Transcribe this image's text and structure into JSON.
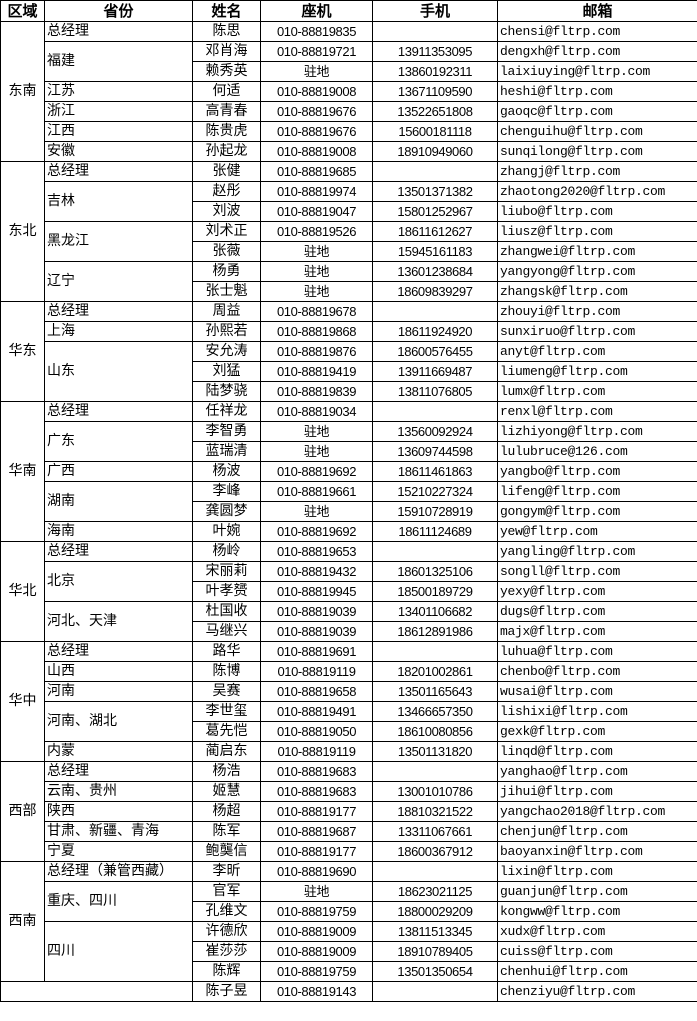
{
  "header": [
    "区域",
    "省份",
    "姓名",
    "座机",
    "手机",
    "邮箱"
  ],
  "regions": [
    {
      "name": "东南",
      "groups": [
        {
          "province": "总经理",
          "people": [
            {
              "name": "陈思",
              "landline": "010-88819835",
              "mobile": "",
              "email": "chensi@fltrp.com"
            }
          ]
        },
        {
          "province": "福建",
          "people": [
            {
              "name": "邓肖海",
              "landline": "010-88819721",
              "mobile": "13911353095",
              "email": "dengxh@fltrp.com"
            },
            {
              "name": "赖秀英",
              "landline": "驻地",
              "mobile": "13860192311",
              "email": "laixiuying@fltrp.com"
            }
          ]
        },
        {
          "province": "江苏",
          "people": [
            {
              "name": "何适",
              "landline": "010-88819008",
              "mobile": "13671109590",
              "email": "heshi@fltrp.com"
            }
          ]
        },
        {
          "province": "浙江",
          "people": [
            {
              "name": "高青春",
              "landline": "010-88819676",
              "mobile": "13522651808",
              "email": "gaoqc@fltrp.com"
            }
          ]
        },
        {
          "province": "江西",
          "people": [
            {
              "name": "陈贵虎",
              "landline": "010-88819676",
              "mobile": "15600181118",
              "email": "chenguihu@fltrp.com"
            }
          ]
        },
        {
          "province": "安徽",
          "people": [
            {
              "name": "孙起龙",
              "landline": "010-88819008",
              "mobile": "18910949060",
              "email": "sunqilong@fltrp.com"
            }
          ]
        }
      ]
    },
    {
      "name": "东北",
      "groups": [
        {
          "province": "总经理",
          "people": [
            {
              "name": "张健",
              "landline": "010-88819685",
              "mobile": "",
              "email": "zhangj@fltrp.com"
            }
          ]
        },
        {
          "province": "吉林",
          "people": [
            {
              "name": "赵彤",
              "landline": "010-88819974",
              "mobile": "13501371382",
              "email": "zhaotong2020@fltrp.com"
            },
            {
              "name": "刘波",
              "landline": "010-88819047",
              "mobile": "15801252967",
              "email": "liubo@fltrp.com"
            }
          ]
        },
        {
          "province": "黑龙江",
          "people": [
            {
              "name": "刘术正",
              "landline": "010-88819526",
              "mobile": "18611612627",
              "email": "liusz@fltrp.com"
            },
            {
              "name": "张薇",
              "landline": "驻地",
              "mobile": "15945161183",
              "email": "zhangwei@fltrp.com"
            }
          ]
        },
        {
          "province": "辽宁",
          "people": [
            {
              "name": "杨勇",
              "landline": "驻地",
              "mobile": "13601238684",
              "email": "yangyong@fltrp.com"
            },
            {
              "name": "张士魁",
              "landline": "驻地",
              "mobile": "18609839297",
              "email": "zhangsk@fltrp.com"
            }
          ]
        }
      ]
    },
    {
      "name": "华东",
      "groups": [
        {
          "province": "总经理",
          "people": [
            {
              "name": "周益",
              "landline": "010-88819678",
              "mobile": "",
              "email": "zhouyi@fltrp.com"
            }
          ]
        },
        {
          "province": "上海",
          "people": [
            {
              "name": "孙熙若",
              "landline": "010-88819868",
              "mobile": "18611924920",
              "email": "sunxiruo@fltrp.com"
            }
          ]
        },
        {
          "province": "山东",
          "people": [
            {
              "name": "安允涛",
              "landline": "010-88819876",
              "mobile": "18600576455",
              "email": "anyt@fltrp.com"
            },
            {
              "name": "刘猛",
              "landline": "010-88819419",
              "mobile": "13911669487",
              "email": "liumeng@fltrp.com"
            },
            {
              "name": "陆梦骁",
              "landline": "010-88819839",
              "mobile": "13811076805",
              "email": "lumx@fltrp.com"
            }
          ]
        }
      ]
    },
    {
      "name": "华南",
      "groups": [
        {
          "province": "总经理",
          "people": [
            {
              "name": "任祥龙",
              "landline": "010-88819034",
              "mobile": "",
              "email": "renxl@fltrp.com"
            }
          ]
        },
        {
          "province": "广东",
          "people": [
            {
              "name": "李智勇",
              "landline": "驻地",
              "mobile": "13560092924",
              "email": "lizhiyong@fltrp.com"
            },
            {
              "name": "蓝瑞清",
              "landline": "驻地",
              "mobile": "13609744598",
              "email": "lulubruce@126.com"
            }
          ]
        },
        {
          "province": "广西",
          "people": [
            {
              "name": "杨波",
              "landline": "010-88819692",
              "mobile": "18611461863",
              "email": "yangbo@fltrp.com"
            }
          ]
        },
        {
          "province": "湖南",
          "people": [
            {
              "name": "李峰",
              "landline": "010-88819661",
              "mobile": "15210227324",
              "email": "lifeng@fltrp.com"
            },
            {
              "name": "龚圆梦",
              "landline": "驻地",
              "mobile": "15910728919",
              "email": "gongym@fltrp.com"
            }
          ]
        },
        {
          "province": "海南",
          "people": [
            {
              "name": "叶婉",
              "landline": "010-88819692",
              "mobile": "18611124689",
              "email": "yew@fltrp.com"
            }
          ]
        }
      ]
    },
    {
      "name": "华北",
      "groups": [
        {
          "province": "总经理",
          "people": [
            {
              "name": "杨岭",
              "landline": "010-88819653",
              "mobile": "",
              "email": "yangling@fltrp.com"
            }
          ]
        },
        {
          "province": "北京",
          "people": [
            {
              "name": "宋丽莉",
              "landline": "010-88819432",
              "mobile": "18601325106",
              "email": "songll@fltrp.com"
            },
            {
              "name": "叶孝赟",
              "landline": "010-88819945",
              "mobile": "18500189729",
              "email": "yexy@fltrp.com"
            }
          ]
        },
        {
          "province": "河北、天津",
          "people": [
            {
              "name": "杜国收",
              "landline": "010-88819039",
              "mobile": "13401106682",
              "email": "dugs@fltrp.com"
            },
            {
              "name": "马继兴",
              "landline": "010-88819039",
              "mobile": "18612891986",
              "email": "majx@fltrp.com"
            }
          ]
        }
      ]
    },
    {
      "name": "华中",
      "groups": [
        {
          "province": "总经理",
          "people": [
            {
              "name": "路华",
              "landline": "010-88819691",
              "mobile": "",
              "email": "luhua@fltrp.com"
            }
          ]
        },
        {
          "province": "山西",
          "people": [
            {
              "name": "陈博",
              "landline": "010-88819119",
              "mobile": "18201002861",
              "email": "chenbo@fltrp.com"
            }
          ]
        },
        {
          "province": "河南",
          "people": [
            {
              "name": "吴赛",
              "landline": "010-88819658",
              "mobile": "13501165643",
              "email": "wusai@fltrp.com"
            }
          ]
        },
        {
          "province": "河南、湖北",
          "people": [
            {
              "name": "李世玺",
              "landline": "010-88819491",
              "mobile": "13466657350",
              "email": "lishixi@fltrp.com"
            },
            {
              "name": "葛先恺",
              "landline": "010-88819050",
              "mobile": "18610080856",
              "email": "gexk@fltrp.com"
            }
          ]
        },
        {
          "province": "内蒙",
          "people": [
            {
              "name": "蔺启东",
              "landline": "010-88819119",
              "mobile": "13501131820",
              "email": "linqd@fltrp.com"
            }
          ]
        }
      ]
    },
    {
      "name": "西部",
      "groups": [
        {
          "province": "总经理",
          "people": [
            {
              "name": "杨浩",
              "landline": "010-88819683",
              "mobile": "",
              "email": "yanghao@fltrp.com"
            }
          ]
        },
        {
          "province": "云南、贵州",
          "people": [
            {
              "name": "姬慧",
              "landline": "010-88819683",
              "mobile": "13001010786",
              "email": "jihui@fltrp.com"
            }
          ]
        },
        {
          "province": "陕西",
          "people": [
            {
              "name": "杨超",
              "landline": "010-88819177",
              "mobile": "18810321522",
              "email": "yangchao2018@fltrp.com"
            }
          ]
        },
        {
          "province": "甘肃、新疆、青海",
          "people": [
            {
              "name": "陈军",
              "landline": "010-88819687",
              "mobile": "13311067661",
              "email": "chenjun@fltrp.com"
            }
          ]
        },
        {
          "province": "宁夏",
          "people": [
            {
              "name": "鲍龑信",
              "landline": "010-88819177",
              "mobile": "18600367912",
              "email": "baoyanxin@fltrp.com"
            }
          ]
        }
      ]
    },
    {
      "name": "西南",
      "groups": [
        {
          "province": "总经理（兼管西藏）",
          "people": [
            {
              "name": "李昕",
              "landline": "010-88819690",
              "mobile": "",
              "email": "lixin@fltrp.com"
            }
          ]
        },
        {
          "province": "重庆、四川",
          "people": [
            {
              "name": "官军",
              "landline": "驻地",
              "mobile": "18623021125",
              "email": "guanjun@fltrp.com"
            },
            {
              "name": "孔维文",
              "landline": "010-88819759",
              "mobile": "18800029209",
              "email": "kongww@fltrp.com"
            }
          ]
        },
        {
          "province": "四川",
          "people": [
            {
              "name": "许德欣",
              "landline": "010-88819009",
              "mobile": "13811513345",
              "email": "xudx@fltrp.com"
            },
            {
              "name": "崔莎莎",
              "landline": "010-88819009",
              "mobile": "18910789405",
              "email": "cuiss@fltrp.com"
            },
            {
              "name": "陈辉",
              "landline": "010-88819759",
              "mobile": "13501350654",
              "email": "chenhui@fltrp.com"
            }
          ]
        }
      ]
    }
  ],
  "extra_row": {
    "name": "陈子昱",
    "landline": "010-88819143",
    "mobile": "",
    "email": "chenziyu@fltrp.com"
  }
}
